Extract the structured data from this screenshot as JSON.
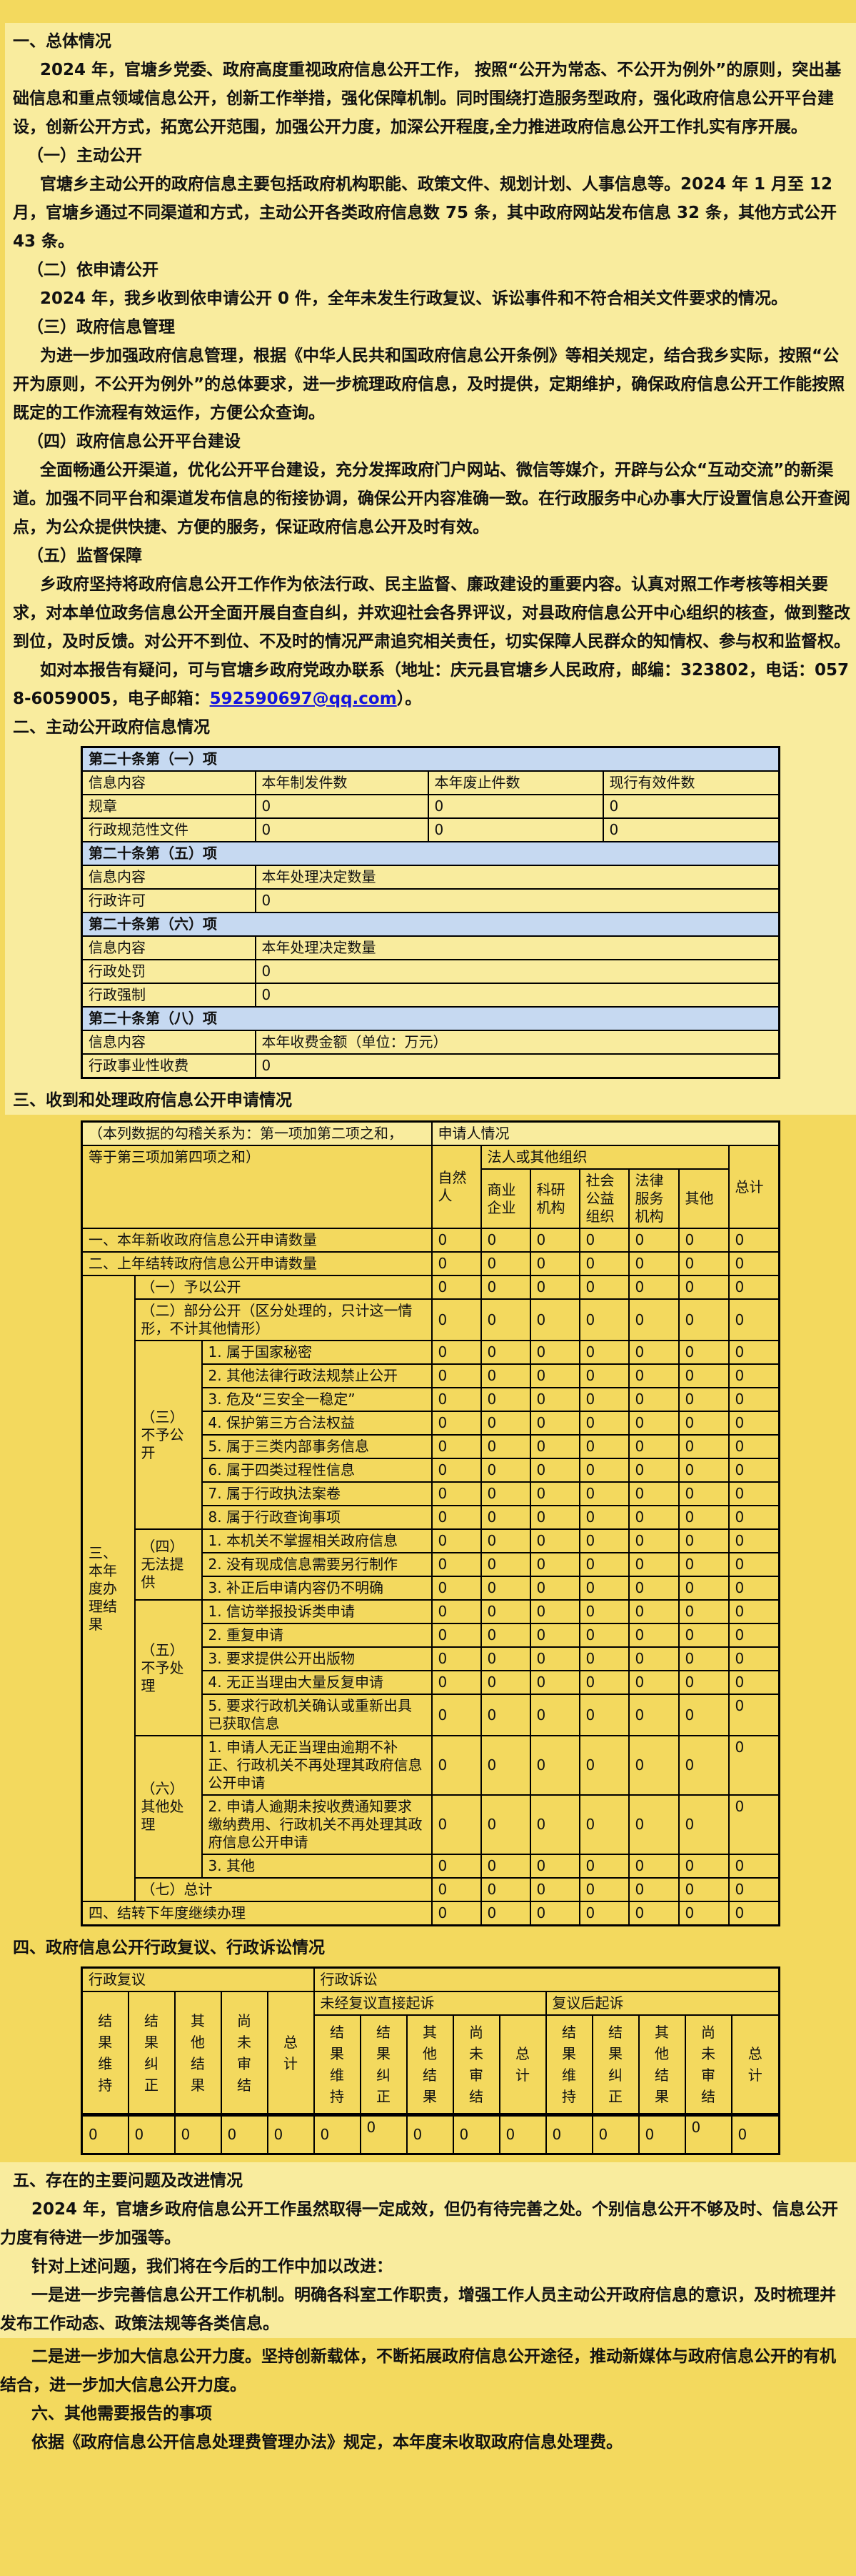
{
  "colors": {
    "page_light": "#f9ec9e",
    "page_gold": "#f3d95e",
    "table_header_blue": "#c6d9f1",
    "link_blue": "#1414dd",
    "border_black": "#000000"
  },
  "s1": {
    "h1": "一、总体情况",
    "p1": "2024 年，官塘乡党委、政府高度重视政府信息公开工作， 按照“公开为常态、不公开为例外”的原则，突出基础信息和重点领域信息公开，创新工作举措，强化保障机制。同时围绕打造服务型政府，强化政府信息公开平台建设，创新公开方式，拓宽公开范围，加强公开力度，加深公开程度,全力推进政府信息公开工作扎实有序开展。",
    "h2a": "（一）主动公开",
    "p2": "官塘乡主动公开的政府信息主要包括政府机构职能、政策文件、规划计划、人事信息等。2024 年 1 月至 12 月，官塘乡通过不同渠道和方式，主动公开各类政府信息数 75 条，其中政府网站发布信息 32 条，其他方式公开 43 条。",
    "h2b": "（二）依申请公开",
    "p3": "2024 年，我乡收到依申请公开 0 件，全年未发生行政复议、诉讼事件和不符合相关文件要求的情况。",
    "h2c": "（三）政府信息管理",
    "p4": "为进一步加强政府信息管理，根据《中华人民共和国政府信息公开条例》等相关规定，结合我乡实际，按照“公开为原则，不公开为例外”的总体要求，进一步梳理政府信息，及时提供，定期维护，确保政府信息公开工作能按照既定的工作流程有效运作，方便公众查询。",
    "h2d": "（四）政府信息公开平台建设",
    "p5": "全面畅通公开渠道，优化公开平台建设，充分发挥政府门户网站、微信等媒介，开辟与公众“互动交流”的新渠道。加强不同平台和渠道发布信息的衔接协调，确保公开内容准确一致。在行政服务中心办事大厅设置信息公开查阅点，为公众提供快捷、方便的服务，保证政府信息公开及时有效。",
    "h2e": "（五）监督保障",
    "p6": "乡政府坚持将政府信息公开工作作为依法行政、民主监督、廉政建设的重要内容。认真对照工作考核等相关要求，对本单位政务信息公开全面开展自查自纠，并欢迎社会各界评议，对县政府信息公开中心组织的核查，做到整改到位，及时反馈。对公开不到位、不及时的情况严肃追究相关责任，切实保障人民群众的知情权、参与权和监督权。",
    "p7_pre": "如对本报告有疑问，可与官塘乡政府党政办联系（地址：庆元县官塘乡人民政府，邮编：323802，电话：0578-6059005，电子邮箱：",
    "email": "592590697@qq.com",
    "p7_post": "）。"
  },
  "s2": {
    "h1": "二、主动公开政府信息情况"
  },
  "s3": {
    "h1": "三、收到和处理政府信息公开申请情况"
  },
  "s4": {
    "h1": "四、政府信息公开行政复议、行政诉讼情况"
  },
  "s5": {
    "h1": "五、存在的主要问题及改进情况",
    "p1": "2024 年，官塘乡政府信息公开工作虽然取得一定成效，但仍有待完善之处。个别信息公开不够及时、信息公开力度有待进一步加强等。",
    "p2": "针对上述问题，我们将在今后的工作中加以改进：",
    "p3": "一是进一步完善信息公开工作机制。明确各科室工作职责，增强工作人员主动公开政府信息的意识，及时梳理并发布工作动态、政策法规等各类信息。"
  },
  "s6": {
    "p1": "二是进一步加大信息公开力度。坚持创新载体，不断拓展政府信息公开途径，推动新媒体与政府信息公开的有机结合，进一步加大信息公开力度。",
    "h1": "六、其他需要报告的事项",
    "p2": "依据《政府信息公开信息处理费管理办法》规定，本年度未收取政府信息处理费。"
  },
  "tables": {
    "main": {
      "cols": [
        243,
        242,
        245,
        247
      ],
      "rows": [
        {
          "cells": [
            {
              "t": "第二十条第（一）项",
              "cs": 4,
              "cls": "blue"
            }
          ]
        },
        {
          "cells": [
            "信息内容",
            "本年制发件数",
            "本年废止件数",
            "现行有效件数"
          ]
        },
        {
          "cells": [
            "规章",
            "0",
            "0",
            "0"
          ]
        },
        {
          "cells": [
            "行政规范性文件",
            "0",
            "0",
            "0"
          ]
        },
        {
          "cells": [
            {
              "t": "第二十条第（五）项",
              "cs": 4,
              "cls": "blue"
            }
          ]
        },
        {
          "cells": [
            {
              "t": "信息内容"
            },
            {
              "t": "本年处理决定数量",
              "cs": 3
            }
          ]
        },
        {
          "cells": [
            {
              "t": "行政许可"
            },
            {
              "t": "0",
              "cs": 3
            }
          ]
        },
        {
          "cells": [
            {
              "t": "第二十条第（六）项",
              "cs": 4,
              "cls": "blue"
            }
          ]
        },
        {
          "cells": [
            {
              "t": "信息内容"
            },
            {
              "t": "本年处理决定数量",
              "cs": 3
            }
          ]
        },
        {
          "cells": [
            {
              "t": "行政处罚"
            },
            {
              "t": "0",
              "cs": 3
            }
          ]
        },
        {
          "cells": [
            {
              "t": "行政强制"
            },
            {
              "t": "0",
              "cs": 3
            }
          ]
        },
        {
          "cells": [
            {
              "t": "第二十条第（八）项",
              "cs": 4,
              "cls": "blue"
            }
          ]
        },
        {
          "cells": [
            {
              "t": "信息内容"
            },
            {
              "t": "本年收费金额（单位：万元）",
              "cs": 3
            }
          ]
        },
        {
          "cells": [
            {
              "t": "行政事业性收费"
            },
            {
              "t": "0",
              "cs": 3
            }
          ]
        }
      ]
    },
    "apply": {
      "cols": [
        74,
        94,
        322,
        69,
        69,
        69,
        69,
        70,
        70,
        71
      ],
      "rows": [
        {
          "cells": [
            {
              "t": "（本列数据的勾稽关系为：第一项加第二项之和，",
              "cs": 3,
              "cls": "lightbg"
            },
            {
              "t": "申请人情况",
              "cs": 7,
              "cls": "lightbg"
            }
          ]
        },
        {
          "cells": [
            {
              "t": "等于第三项加第四项之和）",
              "cs": 3,
              "rs": 2,
              "cls": "vt"
            },
            {
              "t": "自然人",
              "rs": 2
            },
            {
              "t": "法人或其他组织",
              "cs": 5
            },
            {
              "t": "总计",
              "rs": 2
            }
          ]
        },
        {
          "cells": [
            "商业企业",
            "科研机构",
            "社会公益组织",
            "法律服务机构",
            "其他"
          ]
        },
        {
          "cells": [
            {
              "t": "一、本年新收政府信息公开申请数量",
              "cs": 3
            },
            "0",
            "0",
            "0",
            "0",
            "0",
            "0",
            "0"
          ]
        },
        {
          "cells": [
            {
              "t": "二、上年结转政府信息公开申请数量",
              "cs": 3
            },
            "0",
            "0",
            "0",
            "0",
            "0",
            "0",
            "0"
          ]
        },
        {
          "cells": [
            {
              "t": "三、本年度办理结果",
              "rs": 22
            },
            {
              "t": "（一）予以公开",
              "cs": 2
            },
            "0",
            "0",
            "0",
            "0",
            "0",
            "0",
            "0"
          ]
        },
        {
          "cells": [
            {
              "t": "（二）部分公开（区分处理的，只计这一情形，不计其他情形）",
              "cs": 2
            },
            "0",
            "0",
            "0",
            "0",
            "0",
            "0",
            "0"
          ]
        },
        {
          "cells": [
            {
              "t": "（三）不予公开",
              "rs": 8
            },
            "1. 属于国家秘密",
            "0",
            "0",
            "0",
            "0",
            "0",
            "0",
            "0"
          ]
        },
        {
          "cells": [
            "2. 其他法律行政法规禁止公开",
            "0",
            "0",
            "0",
            "0",
            "0",
            "0",
            "0"
          ]
        },
        {
          "cells": [
            "3. 危及“三安全一稳定”",
            "0",
            "0",
            "0",
            "0",
            "0",
            "0",
            "0"
          ]
        },
        {
          "cells": [
            "4. 保护第三方合法权益",
            "0",
            "0",
            "0",
            "0",
            "0",
            "0",
            "0"
          ]
        },
        {
          "cells": [
            "5. 属于三类内部事务信息",
            "0",
            "0",
            "0",
            "0",
            "0",
            "0",
            "0"
          ]
        },
        {
          "cells": [
            "6. 属于四类过程性信息",
            "0",
            "0",
            "0",
            "0",
            "0",
            "0",
            "0"
          ]
        },
        {
          "cells": [
            "7. 属于行政执法案卷",
            "0",
            "0",
            "0",
            "0",
            "0",
            "0",
            "0"
          ]
        },
        {
          "cells": [
            "8. 属于行政查询事项",
            "0",
            "0",
            "0",
            "0",
            "0",
            "0",
            "0"
          ]
        },
        {
          "cells": [
            {
              "t": "（四）无法提供",
              "rs": 3
            },
            "1. 本机关不掌握相关政府信息",
            "0",
            "0",
            "0",
            "0",
            "0",
            "0",
            "0"
          ]
        },
        {
          "cells": [
            "2. 没有现成信息需要另行制作",
            "0",
            "0",
            "0",
            "0",
            "0",
            "0",
            "0"
          ]
        },
        {
          "cells": [
            "3. 补正后申请内容仍不明确",
            "0",
            "0",
            "0",
            "0",
            "0",
            "0",
            "0"
          ]
        },
        {
          "cells": [
            {
              "t": "（五）不予处理",
              "rs": 5
            },
            "1. 信访举报投诉类申请",
            "0",
            "0",
            "0",
            "0",
            "0",
            "0",
            "0"
          ]
        },
        {
          "cells": [
            "2. 重复申请",
            "0",
            "0",
            "0",
            "0",
            "0",
            "0",
            "0"
          ]
        },
        {
          "cells": [
            "3. 要求提供公开出版物",
            "0",
            "0",
            "0",
            "0",
            "0",
            "0",
            "0"
          ]
        },
        {
          "cells": [
            "4. 无正当理由大量反复申请",
            "0",
            "0",
            "0",
            "0",
            "0",
            "0",
            "0"
          ]
        },
        {
          "cells": [
            "5. 要求行政机关确认或重新出具已获取信息",
            "0",
            "0",
            "0",
            "0",
            "0",
            "0",
            {
              "t": "0",
              "cls": "vt"
            }
          ]
        },
        {
          "cells": [
            {
              "t": "（六）其他处理",
              "rs": 3
            },
            "1. 申请人无正当理由逾期不补正、行政机关不再处理其政府信息公开申请",
            "0",
            "0",
            "0",
            "0",
            "0",
            "0",
            {
              "t": "0",
              "cls": "vt"
            }
          ]
        },
        {
          "cells": [
            "2. 申请人逾期未按收费通知要求缴纳费用、行政机关不再处理其政府信息公开申请",
            "0",
            "0",
            "0",
            "0",
            "0",
            "0",
            {
              "t": "0",
              "cls": "vt"
            }
          ]
        },
        {
          "cells": [
            "3. 其他",
            "0",
            "0",
            "0",
            "0",
            "0",
            "0",
            "0"
          ]
        },
        {
          "cells": [
            {
              "t": "（七）总计",
              "cs": 2
            },
            "0",
            "0",
            "0",
            "0",
            "0",
            "0",
            "0"
          ]
        },
        {
          "cells": [
            {
              "t": "四、结转下年度继续办理",
              "cs": 3
            },
            "0",
            "0",
            "0",
            "0",
            "0",
            "0",
            "0"
          ]
        }
      ]
    },
    "review": {
      "cols": [
        65,
        65,
        65,
        65,
        65,
        65,
        65,
        65,
        65,
        65,
        65,
        65,
        65,
        65,
        67
      ],
      "rows": [
        {
          "cells": [
            {
              "t": "行政复议",
              "cs": 5
            },
            {
              "t": "行政诉讼",
              "cs": 10
            }
          ]
        },
        {
          "cells": [
            {
              "t": "结果维持",
              "rs": 2,
              "cls": "vh"
            },
            {
              "t": "结果纠正",
              "rs": 2,
              "cls": "vh"
            },
            {
              "t": "其他结果",
              "rs": 2,
              "cls": "vh"
            },
            {
              "t": "尚未审结",
              "rs": 2,
              "cls": "vh"
            },
            {
              "t": "总计",
              "rs": 2,
              "cls": "vh"
            },
            {
              "t": "未经复议直接起诉",
              "cs": 5
            },
            {
              "t": "复议后起诉",
              "cs": 5
            }
          ]
        },
        {
          "cells": [
            {
              "t": "结果维持",
              "cls": "vh"
            },
            {
              "t": "结果纠正",
              "cls": "vh"
            },
            {
              "t": "其他结果",
              "cls": "vh"
            },
            {
              "t": "尚未审结",
              "cls": "vh"
            },
            {
              "t": "总计",
              "cls": "vh"
            },
            {
              "t": "结果维持",
              "cls": "vh"
            },
            {
              "t": "结果纠正",
              "cls": "vh"
            },
            {
              "t": "其他结果",
              "cls": "vh"
            },
            {
              "t": "尚未审结",
              "cls": "vh"
            },
            {
              "t": "总计",
              "cls": "vh"
            }
          ]
        },
        {
          "h": 55,
          "cells": [
            {
              "t": "0",
              "cls": "bt"
            },
            {
              "t": "0",
              "cls": "bt"
            },
            {
              "t": "0",
              "cls": "bt"
            },
            {
              "t": "0",
              "cls": "bt"
            },
            {
              "t": "0",
              "cls": "bt"
            },
            {
              "t": "0",
              "cls": "bt"
            },
            {
              "t": "0",
              "cls": "bt vt"
            },
            {
              "t": "0",
              "cls": "bt"
            },
            {
              "t": "0",
              "cls": "bt"
            },
            {
              "t": "0",
              "cls": "bt"
            },
            {
              "t": "0",
              "cls": "bt"
            },
            {
              "t": "0",
              "cls": "bt"
            },
            {
              "t": "0",
              "cls": "bt"
            },
            {
              "t": "0",
              "cls": "bt vt"
            },
            {
              "t": "0",
              "cls": "bt"
            }
          ]
        }
      ]
    }
  }
}
